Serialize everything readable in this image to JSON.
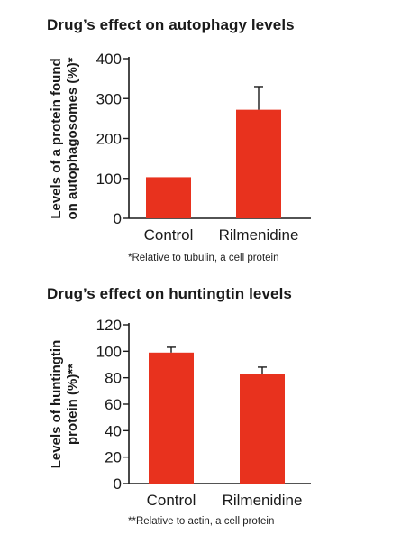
{
  "chart_data": [
    {
      "type": "bar",
      "title": "Drug’s effect on autophagy levels",
      "ylabel_line1": "Levels of a protein found",
      "ylabel_line2": "on autophagosomes (%)*",
      "categories": [
        "Control",
        "Rilmenidine"
      ],
      "values": [
        103,
        272
      ],
      "errors": [
        0,
        58
      ],
      "ylim": [
        0,
        400
      ],
      "yticks": [
        0,
        100,
        200,
        300,
        400
      ],
      "bar_color": "#e8321e",
      "footnote": "*Relative to tubulin, a cell protein",
      "grid": false
    },
    {
      "type": "bar",
      "title": "Drug’s effect on huntingtin levels",
      "ylabel_line1": "Levels of huntingtin",
      "ylabel_line2": "protein (%)**",
      "categories": [
        "Control",
        "Rilmenidine"
      ],
      "values": [
        99,
        83
      ],
      "errors": [
        4,
        5
      ],
      "ylim": [
        0,
        120
      ],
      "yticks": [
        0,
        20,
        40,
        60,
        80,
        100,
        120
      ],
      "bar_color": "#e8321e",
      "footnote": "**Relative to actin, a cell protein",
      "grid": false
    }
  ]
}
